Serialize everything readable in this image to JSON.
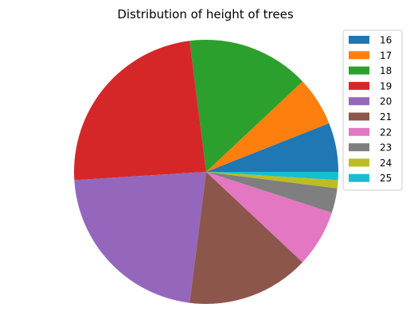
{
  "chart_data": {
    "type": "pie",
    "title": "Distribution of height of trees",
    "legend_position": "top-right",
    "start_angle_deg": 0,
    "direction": "counterclockwise",
    "slices": [
      {
        "label": "16",
        "value": 6.0,
        "color": "#1f77b4"
      },
      {
        "label": "17",
        "value": 6.0,
        "color": "#ff7f0e"
      },
      {
        "label": "18",
        "value": 15.0,
        "color": "#2ca02c"
      },
      {
        "label": "19",
        "value": 24.0,
        "color": "#d62728"
      },
      {
        "label": "20",
        "value": 22.0,
        "color": "#9467bd"
      },
      {
        "label": "21",
        "value": 15.0,
        "color": "#8c564b"
      },
      {
        "label": "22",
        "value": 7.0,
        "color": "#e377c2"
      },
      {
        "label": "23",
        "value": 3.0,
        "color": "#7f7f7f"
      },
      {
        "label": "24",
        "value": 1.0,
        "color": "#bcbd22"
      },
      {
        "label": "25",
        "value": 1.0,
        "color": "#17becf"
      }
    ]
  }
}
